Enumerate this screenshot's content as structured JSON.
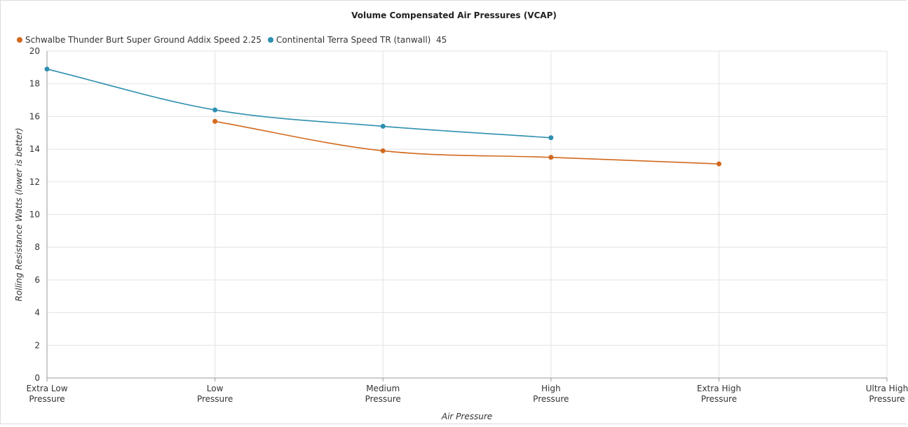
{
  "chart_data": {
    "type": "line",
    "title": "Volume Compensated Air Pressures (VCAP)",
    "xlabel": "Air Pressure",
    "ylabel": "Rolling Resistance Watts (lower is better)",
    "categories": [
      [
        "Extra Low",
        "Pressure"
      ],
      [
        "Low",
        "Pressure"
      ],
      [
        "Medium",
        "Pressure"
      ],
      [
        "High",
        "Pressure"
      ],
      [
        "Extra High",
        "Pressure"
      ],
      [
        "Ultra High",
        "Pressure"
      ]
    ],
    "ylim": [
      0,
      20
    ],
    "yticks": [
      0,
      2,
      4,
      6,
      8,
      10,
      12,
      14,
      16,
      18,
      20
    ],
    "grid": true,
    "legend_position": "top-left",
    "series": [
      {
        "name": "Schwalbe Thunder Burt Super Ground Addix Speed 2.25",
        "color": "#d2691e",
        "values": [
          null,
          15.7,
          13.9,
          13.5,
          13.1,
          null
        ]
      },
      {
        "name": "Continental Terra Speed TR (tanwall)  45",
        "color": "#2e8fb0",
        "values": [
          18.9,
          16.4,
          15.4,
          14.7,
          null,
          null
        ]
      }
    ]
  }
}
